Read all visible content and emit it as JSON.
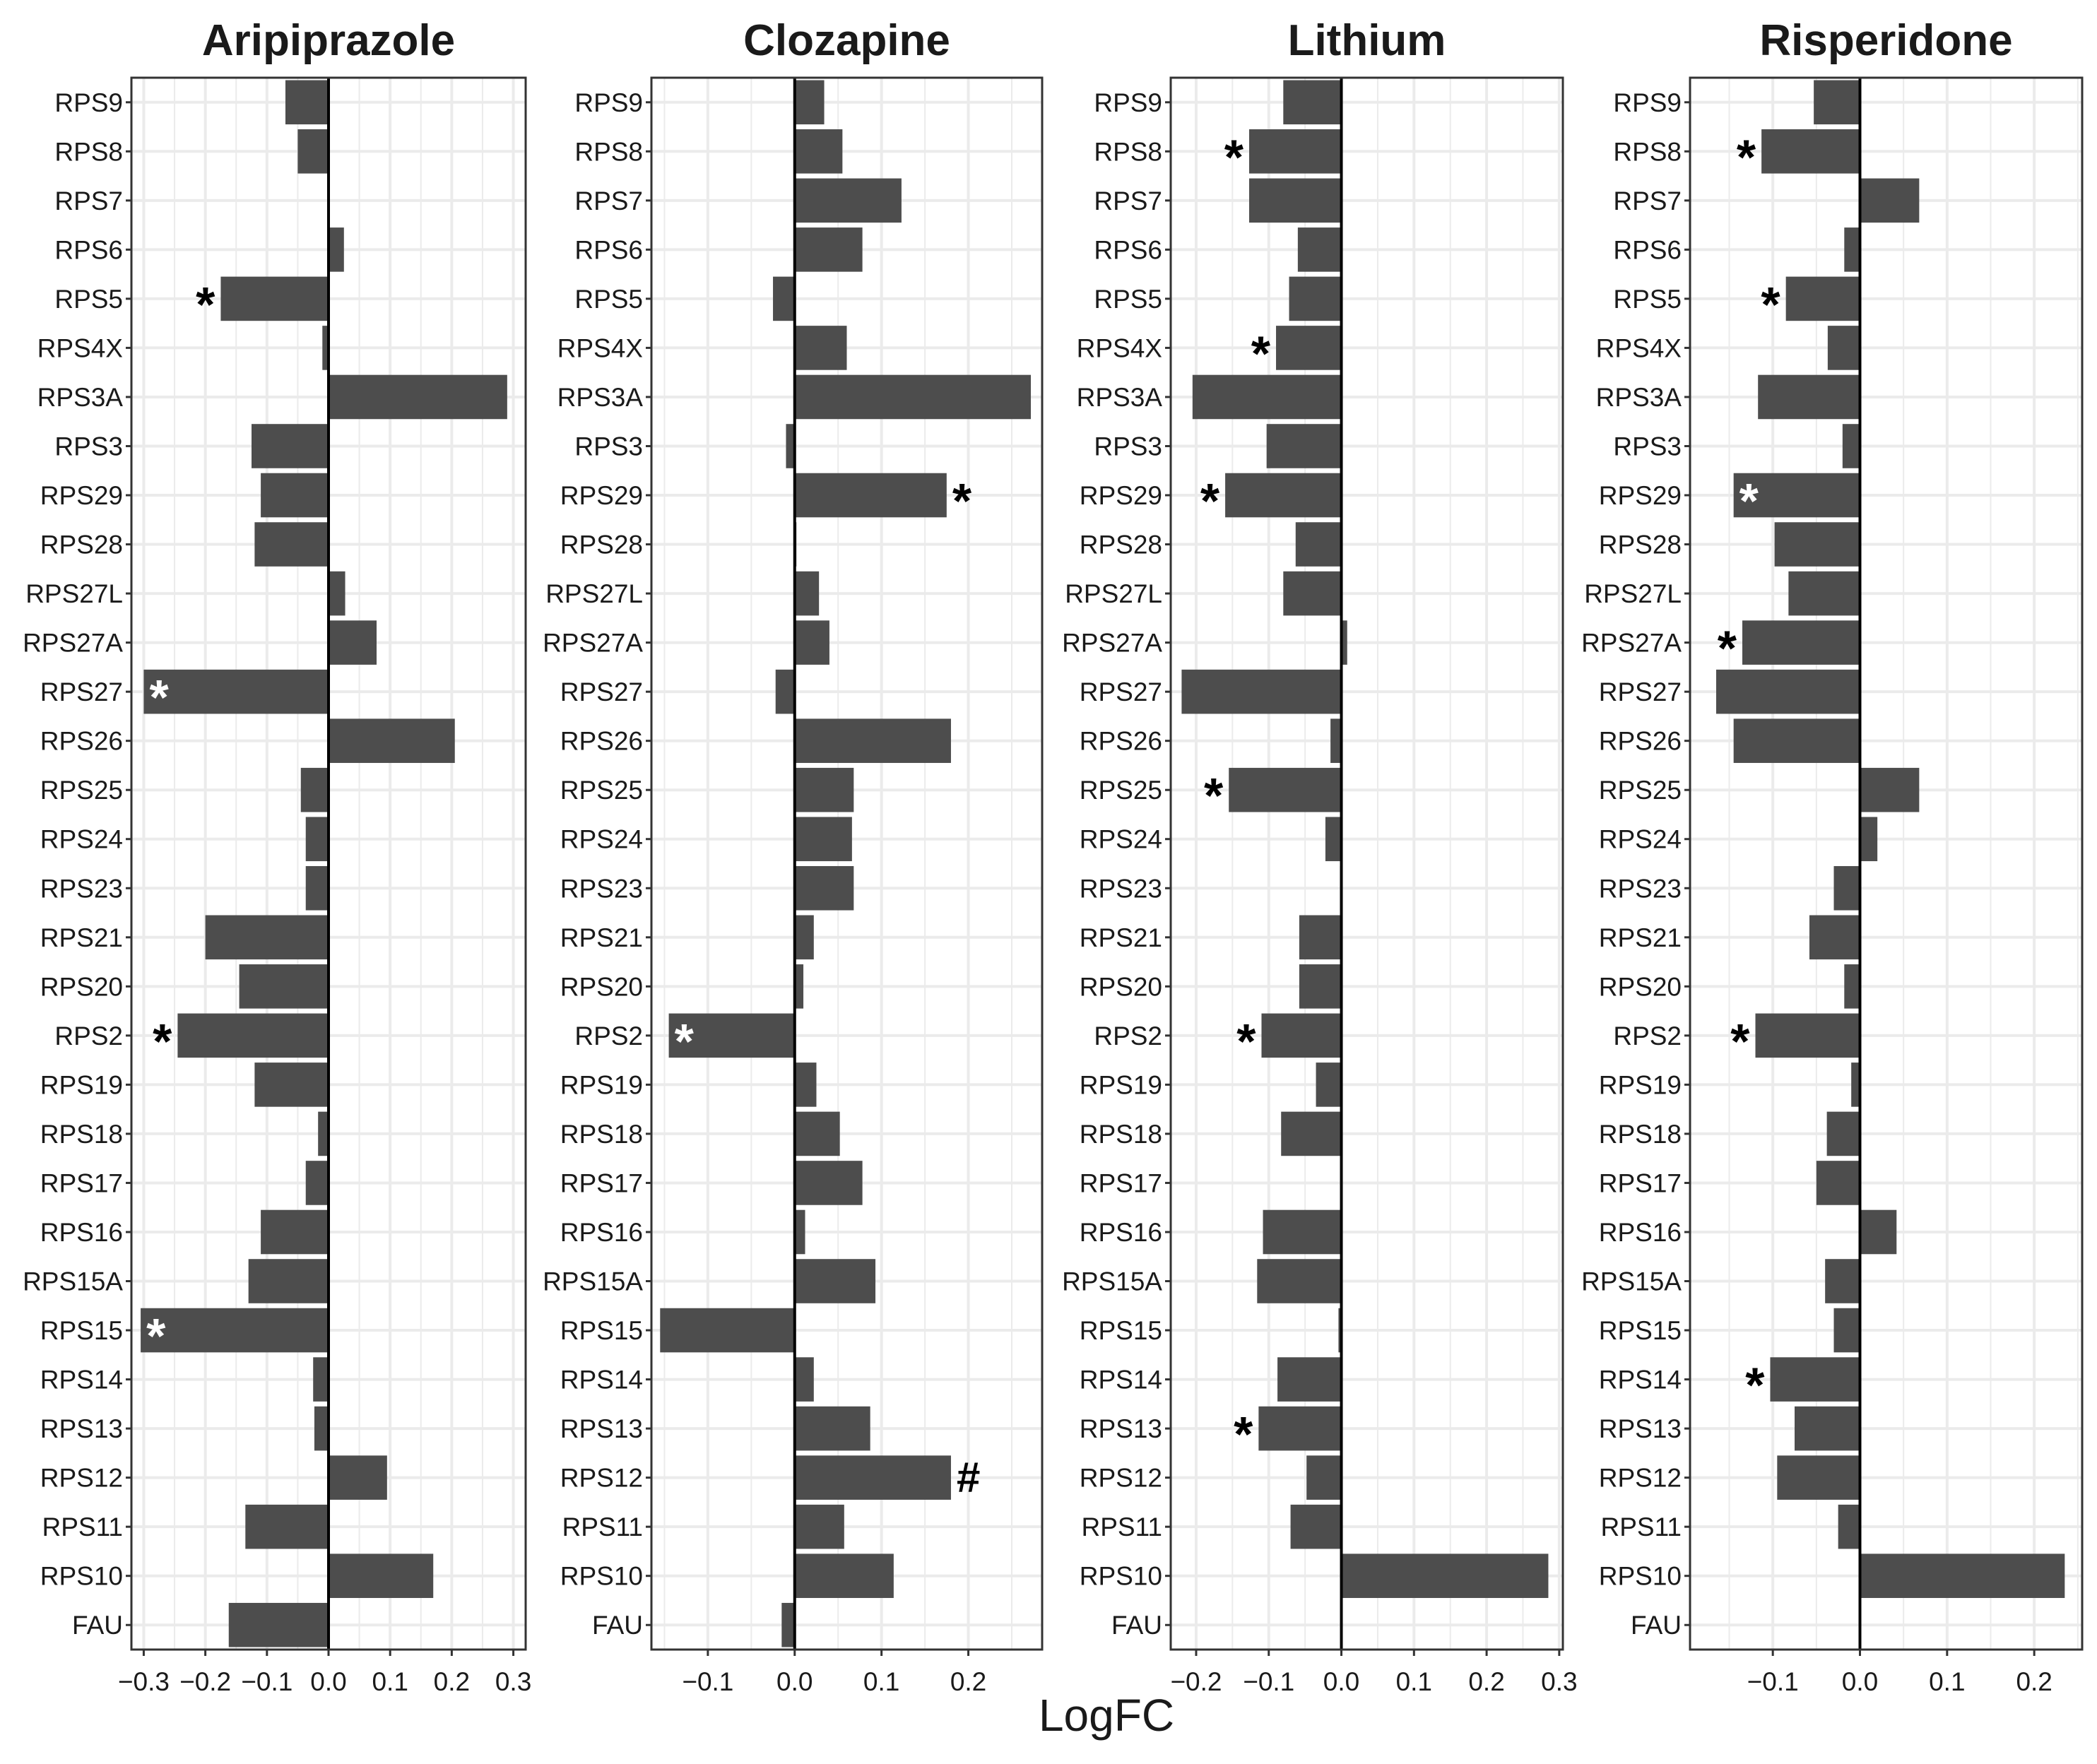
{
  "figure": {
    "shared_xlabel": "LogFC",
    "colors": {
      "bar": "#4d4d4d",
      "panel_border": "#333333",
      "grid": "#ebebeb",
      "zero_line": "#000000",
      "text": "#1a1a1a",
      "star_dark": "#000000",
      "star_light": "#ffffff"
    }
  },
  "chart_data": [
    {
      "type": "bar",
      "orientation": "horizontal",
      "title": "Aripiprazole",
      "xlabel": "LogFC",
      "xlim": [
        -0.32,
        0.32
      ],
      "xticks": [
        -0.3,
        -0.2,
        -0.1,
        0.0,
        0.1,
        0.2,
        0.3
      ],
      "xtick_labels": [
        "−0.3",
        "−0.2",
        "−0.1",
        "0.0",
        "0.1",
        "0.2",
        "0.3"
      ],
      "categories": [
        "RPS9",
        "RPS8",
        "RPS7",
        "RPS6",
        "RPS5",
        "RPS4X",
        "RPS3A",
        "RPS3",
        "RPS29",
        "RPS28",
        "RPS27L",
        "RPS27A",
        "RPS27",
        "RPS26",
        "RPS25",
        "RPS24",
        "RPS23",
        "RPS21",
        "RPS20",
        "RPS2",
        "RPS19",
        "RPS18",
        "RPS17",
        "RPS16",
        "RPS15A",
        "RPS15",
        "RPS14",
        "RPS13",
        "RPS12",
        "RPS11",
        "RPS10",
        "FAU"
      ],
      "values": [
        -0.07,
        -0.05,
        0.0,
        0.025,
        -0.175,
        -0.01,
        0.29,
        -0.125,
        -0.11,
        -0.12,
        0.027,
        0.078,
        -0.3,
        0.205,
        -0.045,
        -0.037,
        -0.037,
        -0.2,
        -0.145,
        -0.245,
        -0.12,
        -0.017,
        -0.037,
        -0.11,
        -0.13,
        -0.305,
        -0.025,
        -0.023,
        0.095,
        -0.135,
        0.17,
        -0.162
      ],
      "annotations": [
        {
          "category": "RPS5",
          "symbol": "*",
          "style": "outside"
        },
        {
          "category": "RPS27",
          "symbol": "*",
          "style": "inside"
        },
        {
          "category": "RPS2",
          "symbol": "*",
          "style": "outside"
        },
        {
          "category": "RPS15",
          "symbol": "*",
          "style": "inside"
        }
      ]
    },
    {
      "type": "bar",
      "orientation": "horizontal",
      "title": "Clozapine",
      "xlabel": "LogFC",
      "xlim": [
        -0.165,
        0.285
      ],
      "xticks": [
        -0.1,
        0.0,
        0.1,
        0.2
      ],
      "xtick_labels": [
        "−0.1",
        "0.0",
        "0.1",
        "0.2"
      ],
      "categories": [
        "RPS9",
        "RPS8",
        "RPS7",
        "RPS6",
        "RPS5",
        "RPS4X",
        "RPS3A",
        "RPS3",
        "RPS29",
        "RPS28",
        "RPS27L",
        "RPS27A",
        "RPS27",
        "RPS26",
        "RPS25",
        "RPS24",
        "RPS23",
        "RPS21",
        "RPS20",
        "RPS2",
        "RPS19",
        "RPS18",
        "RPS17",
        "RPS16",
        "RPS15A",
        "RPS15",
        "RPS14",
        "RPS13",
        "RPS12",
        "RPS11",
        "RPS10",
        "FAU"
      ],
      "values": [
        0.034,
        0.055,
        0.123,
        0.078,
        -0.025,
        0.06,
        0.272,
        -0.01,
        0.175,
        0.002,
        0.028,
        0.04,
        -0.022,
        0.18,
        0.068,
        0.066,
        0.068,
        0.022,
        0.01,
        -0.145,
        0.025,
        0.052,
        0.078,
        0.012,
        0.093,
        -0.155,
        0.022,
        0.087,
        0.18,
        0.057,
        0.114,
        -0.015
      ],
      "annotations": [
        {
          "category": "RPS29",
          "symbol": "*",
          "style": "outside"
        },
        {
          "category": "RPS2",
          "symbol": "*",
          "style": "inside"
        },
        {
          "category": "RPS12",
          "symbol": "#",
          "style": "outside"
        }
      ]
    },
    {
      "type": "bar",
      "orientation": "horizontal",
      "title": "Lithium",
      "xlabel": "LogFC",
      "xlim": [
        -0.235,
        0.305
      ],
      "xticks": [
        -0.2,
        -0.1,
        0.0,
        0.1,
        0.2,
        0.3
      ],
      "xtick_labels": [
        "−0.2",
        "−0.1",
        "0.0",
        "0.1",
        "0.2",
        "0.3"
      ],
      "categories": [
        "RPS9",
        "RPS8",
        "RPS7",
        "RPS6",
        "RPS5",
        "RPS4X",
        "RPS3A",
        "RPS3",
        "RPS29",
        "RPS28",
        "RPS27L",
        "RPS27A",
        "RPS27",
        "RPS26",
        "RPS25",
        "RPS24",
        "RPS23",
        "RPS21",
        "RPS20",
        "RPS2",
        "RPS19",
        "RPS18",
        "RPS17",
        "RPS16",
        "RPS15A",
        "RPS15",
        "RPS14",
        "RPS13",
        "RPS12",
        "RPS11",
        "RPS10",
        "FAU"
      ],
      "values": [
        -0.08,
        -0.127,
        -0.127,
        -0.06,
        -0.072,
        -0.09,
        -0.205,
        -0.103,
        -0.16,
        -0.063,
        -0.08,
        0.008,
        -0.22,
        -0.015,
        -0.155,
        -0.022,
        -0.002,
        -0.058,
        -0.058,
        -0.11,
        -0.035,
        -0.083,
        0.0,
        -0.108,
        -0.116,
        -0.004,
        -0.088,
        -0.114,
        -0.048,
        -0.07,
        0.285,
        0.0
      ],
      "annotations": [
        {
          "category": "RPS8",
          "symbol": "*",
          "style": "outside"
        },
        {
          "category": "RPS4X",
          "symbol": "*",
          "style": "outside"
        },
        {
          "category": "RPS29",
          "symbol": "*",
          "style": "outside"
        },
        {
          "category": "RPS25",
          "symbol": "*",
          "style": "outside"
        },
        {
          "category": "RPS2",
          "symbol": "*",
          "style": "outside"
        },
        {
          "category": "RPS13",
          "symbol": "*",
          "style": "outside"
        }
      ]
    },
    {
      "type": "bar",
      "orientation": "horizontal",
      "title": "Risperidone",
      "xlabel": "LogFC",
      "xlim": [
        -0.195,
        0.255
      ],
      "xticks": [
        -0.1,
        0.0,
        0.1,
        0.2
      ],
      "xtick_labels": [
        "−0.1",
        "0.0",
        "0.1",
        "0.2"
      ],
      "categories": [
        "RPS9",
        "RPS8",
        "RPS7",
        "RPS6",
        "RPS5",
        "RPS4X",
        "RPS3A",
        "RPS3",
        "RPS29",
        "RPS28",
        "RPS27L",
        "RPS27A",
        "RPS27",
        "RPS26",
        "RPS25",
        "RPS24",
        "RPS23",
        "RPS21",
        "RPS20",
        "RPS2",
        "RPS19",
        "RPS18",
        "RPS17",
        "RPS16",
        "RPS15A",
        "RPS15",
        "RPS14",
        "RPS13",
        "RPS12",
        "RPS11",
        "RPS10",
        "FAU"
      ],
      "values": [
        -0.053,
        -0.113,
        0.068,
        -0.018,
        -0.085,
        -0.037,
        -0.117,
        -0.02,
        -0.145,
        -0.098,
        -0.082,
        -0.135,
        -0.165,
        -0.145,
        0.068,
        0.02,
        -0.03,
        -0.058,
        -0.018,
        -0.12,
        -0.01,
        -0.038,
        -0.05,
        0.042,
        -0.04,
        -0.03,
        -0.103,
        -0.075,
        -0.095,
        -0.025,
        0.235,
        0.0
      ],
      "annotations": [
        {
          "category": "RPS8",
          "symbol": "*",
          "style": "outside"
        },
        {
          "category": "RPS5",
          "symbol": "*",
          "style": "outside"
        },
        {
          "category": "RPS29",
          "symbol": "*",
          "style": "inside"
        },
        {
          "category": "RPS27A",
          "symbol": "*",
          "style": "outside"
        },
        {
          "category": "RPS2",
          "symbol": "*",
          "style": "outside"
        },
        {
          "category": "RPS14",
          "symbol": "*",
          "style": "outside"
        }
      ]
    }
  ]
}
